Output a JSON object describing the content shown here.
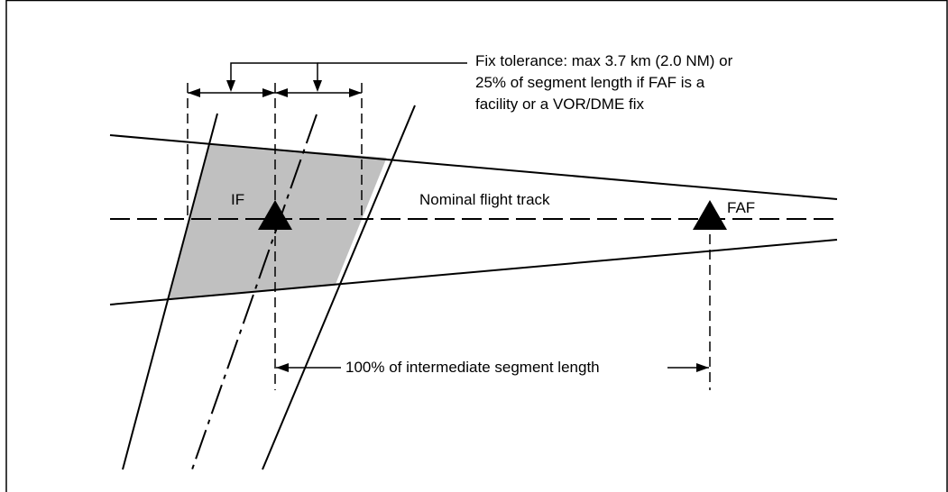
{
  "diagram": {
    "fix_tolerance_note": {
      "line1": "Fix tolerance: max 3.7 km (2.0 NM) or",
      "line2": "25% of segment length if FAF is a",
      "line3": "facility or a VOR/DME fix"
    },
    "if_label": "IF",
    "faf_label": "FAF",
    "nominal_track_label": "Nominal flight track",
    "segment_length_label": "100% of intermediate segment length",
    "colors": {
      "line": "#000000",
      "tolerance_area_fill": "#c0c0c0",
      "background": "#ffffff"
    }
  }
}
